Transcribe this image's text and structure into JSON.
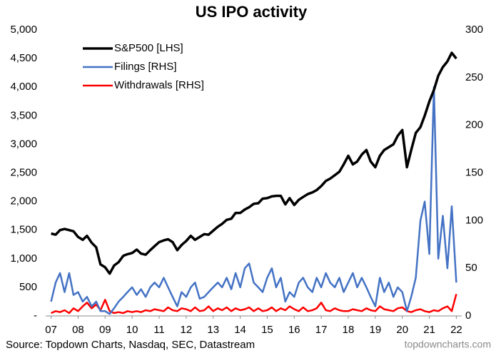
{
  "chart_data": {
    "type": "line",
    "title": "US IPO activity",
    "source": "Source: Topdown Charts, Nasdaq, SEC, Datastream",
    "credit": "topdowncharts.com",
    "legend": "top-left",
    "xlim": [
      2006.8,
      2022.2
    ],
    "xticks": [
      {
        "value": 2007,
        "label": "07"
      },
      {
        "value": 2008,
        "label": "08"
      },
      {
        "value": 2009,
        "label": "09"
      },
      {
        "value": 2010,
        "label": "10"
      },
      {
        "value": 2011,
        "label": "11"
      },
      {
        "value": 2012,
        "label": "12"
      },
      {
        "value": 2013,
        "label": "13"
      },
      {
        "value": 2014,
        "label": "14"
      },
      {
        "value": 2015,
        "label": "15"
      },
      {
        "value": 2016,
        "label": "16"
      },
      {
        "value": 2017,
        "label": "17"
      },
      {
        "value": 2018,
        "label": "18"
      },
      {
        "value": 2019,
        "label": "19"
      },
      {
        "value": 2020,
        "label": "20"
      },
      {
        "value": 2021,
        "label": "21"
      },
      {
        "value": 2022,
        "label": "22"
      }
    ],
    "ylim": [
      0,
      5000
    ],
    "yticks": [
      {
        "value": 0,
        "label": "-"
      },
      500,
      {
        "value": 1000,
        "label": "1,000"
      },
      {
        "value": 1500,
        "label": "1,500"
      },
      {
        "value": 2000,
        "label": "2,000"
      },
      {
        "value": 2500,
        "label": "2,500"
      },
      {
        "value": 3000,
        "label": "3,000"
      },
      {
        "value": 3500,
        "label": "3,500"
      },
      {
        "value": 4000,
        "label": "4,000"
      },
      {
        "value": 4500,
        "label": "4,500"
      },
      {
        "value": 5000,
        "label": "5,000"
      }
    ],
    "y2lim": [
      0,
      300
    ],
    "y2ticks": [
      0,
      50,
      100,
      150,
      200,
      250,
      300
    ],
    "x": [
      2007,
      2007.17,
      2007.33,
      2007.5,
      2007.67,
      2007.83,
      2008,
      2008.17,
      2008.33,
      2008.5,
      2008.67,
      2008.83,
      2009,
      2009.17,
      2009.33,
      2009.5,
      2009.67,
      2009.83,
      2010,
      2010.17,
      2010.33,
      2010.5,
      2010.67,
      2010.83,
      2011,
      2011.17,
      2011.33,
      2011.5,
      2011.67,
      2011.83,
      2012,
      2012.17,
      2012.33,
      2012.5,
      2012.67,
      2012.83,
      2013,
      2013.17,
      2013.33,
      2013.5,
      2013.67,
      2013.83,
      2014,
      2014.17,
      2014.33,
      2014.5,
      2014.67,
      2014.83,
      2015,
      2015.17,
      2015.33,
      2015.5,
      2015.67,
      2015.83,
      2016,
      2016.17,
      2016.33,
      2016.5,
      2016.67,
      2016.83,
      2017,
      2017.17,
      2017.33,
      2017.5,
      2017.67,
      2017.83,
      2018,
      2018.17,
      2018.33,
      2018.5,
      2018.67,
      2018.83,
      2019,
      2019.17,
      2019.33,
      2019.5,
      2019.67,
      2019.83,
      2020,
      2020.17,
      2020.33,
      2020.5,
      2020.67,
      2020.83,
      2021,
      2021.17,
      2021.33,
      2021.5,
      2021.67,
      2021.83,
      2022
    ],
    "series": [
      {
        "name": "S&P500 [LHS]",
        "color": "#000000",
        "values": [
          1440,
          1420,
          1500,
          1520,
          1500,
          1480,
          1380,
          1330,
          1400,
          1280,
          1200,
          900,
          850,
          740,
          880,
          940,
          1050,
          1080,
          1100,
          1160,
          1090,
          1070,
          1150,
          1220,
          1290,
          1320,
          1340,
          1290,
          1150,
          1240,
          1310,
          1400,
          1330,
          1380,
          1430,
          1420,
          1490,
          1560,
          1610,
          1680,
          1700,
          1800,
          1800,
          1860,
          1900,
          1960,
          1970,
          2050,
          2060,
          2090,
          2100,
          2100,
          1950,
          2060,
          1940,
          2030,
          2080,
          2130,
          2160,
          2200,
          2270,
          2360,
          2400,
          2460,
          2520,
          2650,
          2800,
          2650,
          2700,
          2820,
          2900,
          2700,
          2600,
          2800,
          2900,
          2950,
          3000,
          3150,
          3250,
          2600,
          2900,
          3200,
          3300,
          3500,
          3750,
          3950,
          4200,
          4350,
          4450,
          4600,
          4500
        ]
      },
      {
        "name": "Filings [RHS]",
        "color": "#4472c4",
        "axis": "y2",
        "values": [
          15,
          35,
          45,
          25,
          45,
          22,
          25,
          15,
          20,
          10,
          15,
          5,
          5,
          2,
          8,
          15,
          20,
          25,
          30,
          22,
          28,
          20,
          30,
          35,
          30,
          40,
          30,
          20,
          10,
          25,
          20,
          30,
          35,
          18,
          20,
          25,
          30,
          35,
          30,
          40,
          28,
          45,
          30,
          50,
          55,
          35,
          30,
          25,
          40,
          50,
          30,
          40,
          15,
          25,
          20,
          35,
          40,
          30,
          25,
          40,
          30,
          45,
          35,
          30,
          40,
          25,
          35,
          45,
          30,
          40,
          30,
          20,
          10,
          40,
          25,
          35,
          20,
          30,
          25,
          5,
          20,
          40,
          100,
          120,
          65,
          240,
          60,
          105,
          50,
          115,
          35
        ]
      },
      {
        "name": "Withdrawals [RHS]",
        "color": "#ff0000",
        "axis": "y2",
        "values": [
          3,
          5,
          4,
          6,
          3,
          8,
          5,
          10,
          14,
          8,
          12,
          6,
          17,
          5,
          3,
          4,
          3,
          5,
          4,
          5,
          4,
          6,
          5,
          7,
          6,
          5,
          9,
          6,
          5,
          8,
          7,
          5,
          9,
          5,
          6,
          10,
          5,
          8,
          6,
          9,
          5,
          8,
          6,
          7,
          9,
          5,
          8,
          5,
          6,
          9,
          5,
          8,
          6,
          10,
          7,
          5,
          9,
          5,
          6,
          8,
          14,
          6,
          5,
          8,
          6,
          5,
          5,
          7,
          6,
          5,
          8,
          6,
          5,
          10,
          7,
          6,
          5,
          8,
          9,
          5,
          4,
          6,
          7,
          5,
          4,
          6,
          5,
          8,
          10,
          5,
          23
        ]
      }
    ]
  }
}
